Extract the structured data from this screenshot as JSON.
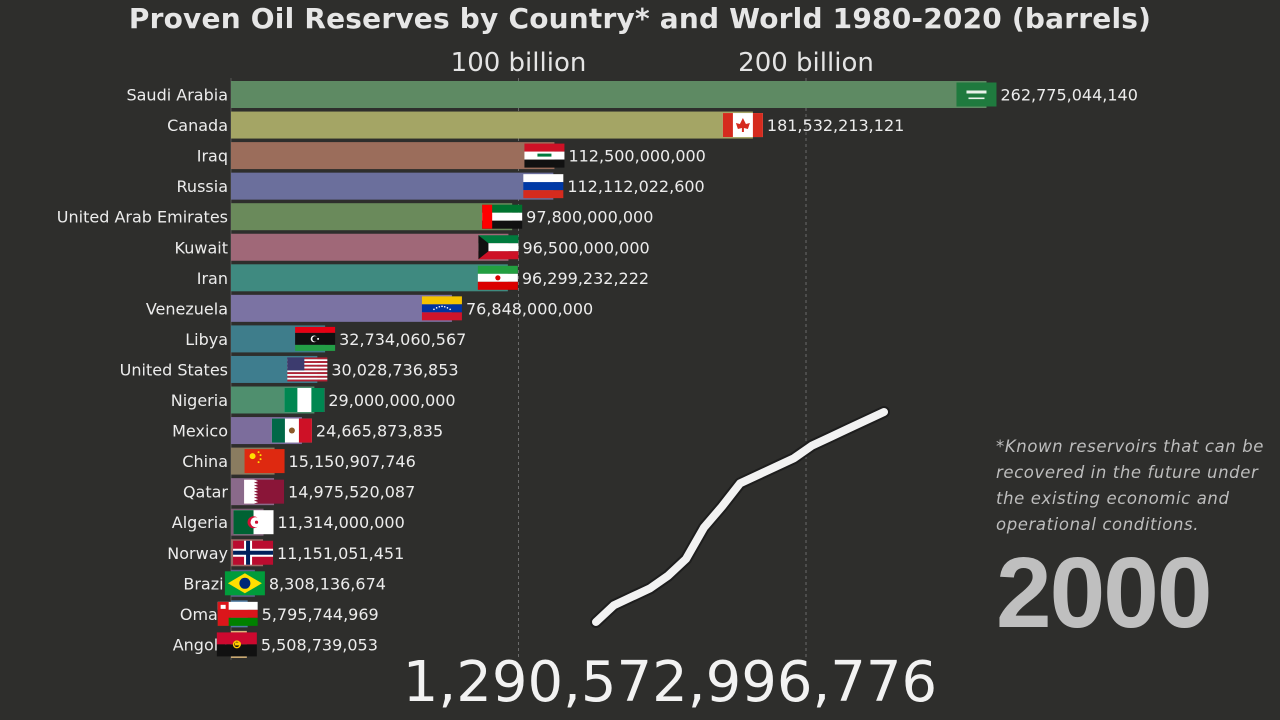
{
  "chart_data": {
    "type": "bar",
    "orientation": "horizontal",
    "title": "Proven Oil Reserves by Country* and World 1980-2020 (barrels)",
    "x_ticks": [
      {
        "value": 100000000000,
        "label": "100 billion"
      },
      {
        "value": 200000000000,
        "label": "200 billion"
      }
    ],
    "xlim": [
      0,
      275000000000
    ],
    "grid": true,
    "categories": [
      "Saudi Arabia",
      "Canada",
      "Iraq",
      "Russia",
      "United Arab Emirates",
      "Kuwait",
      "Iran",
      "Venezuela",
      "Libya",
      "United States",
      "Nigeria",
      "Mexico",
      "China",
      "Qatar",
      "Algeria",
      "Norway",
      "Brazil",
      "Oman",
      "Angola"
    ],
    "values": [
      262775044140,
      181532213121,
      112500000000,
      112112022600,
      97800000000,
      96500000000,
      96299232222,
      76848000000,
      32734060567,
      30028736853,
      29000000000,
      24665873835,
      15150907746,
      14975520087,
      11314000000,
      11151051451,
      8308136674,
      5795744969,
      5508739053
    ],
    "value_labels": [
      "262,775,044,140",
      "181,532,213,121",
      "112,500,000,000",
      "112,112,022,600",
      "97,800,000,000",
      "96,500,000,000",
      "96,299,232,222",
      "76,848,000,000",
      "32,734,060,567",
      "30,028,736,853",
      "29,000,000,000",
      "24,665,873,835",
      "15,150,907,746",
      "14,975,520,087",
      "11,314,000,000",
      "11,151,051,451",
      "8,308,136,674",
      "5,795,744,969",
      "5,508,739,053"
    ],
    "colors": [
      "#5e8a63",
      "#a4a565",
      "#9b6d5b",
      "#6b6f9c",
      "#6a8a5b",
      "#a06878",
      "#3f8a80",
      "#7b73a3",
      "#3e7d8b",
      "#3e7d8e",
      "#4f8f6e",
      "#7c6d9c",
      "#8a7c60",
      "#8a6a8a",
      "#7c5c74",
      "#9c6a66",
      "#5e5e8a",
      "#4f7ba3",
      "#d9b57a"
    ],
    "flags": [
      "saudi-arabia-flag",
      "canada-flag",
      "iraq-flag",
      "russia-flag",
      "uae-flag",
      "kuwait-flag",
      "iran-flag",
      "venezuela-flag",
      "libya-flag",
      "usa-flag",
      "nigeria-flag",
      "mexico-flag",
      "china-flag",
      "qatar-flag",
      "algeria-flag",
      "norway-flag",
      "brazil-flag",
      "oman-flag",
      "angola-flag"
    ],
    "world_trend": [
      0.0,
      0.08,
      0.12,
      0.16,
      0.22,
      0.3,
      0.45,
      0.55,
      0.66,
      0.7,
      0.74,
      0.78,
      0.84,
      0.88,
      0.92,
      0.96,
      1.0
    ]
  },
  "footnote": "*Known reservoirs that can be recovered in the future under the existing economic and operational conditions.",
  "year": "2000",
  "world_total": "1,290,572,996,776"
}
